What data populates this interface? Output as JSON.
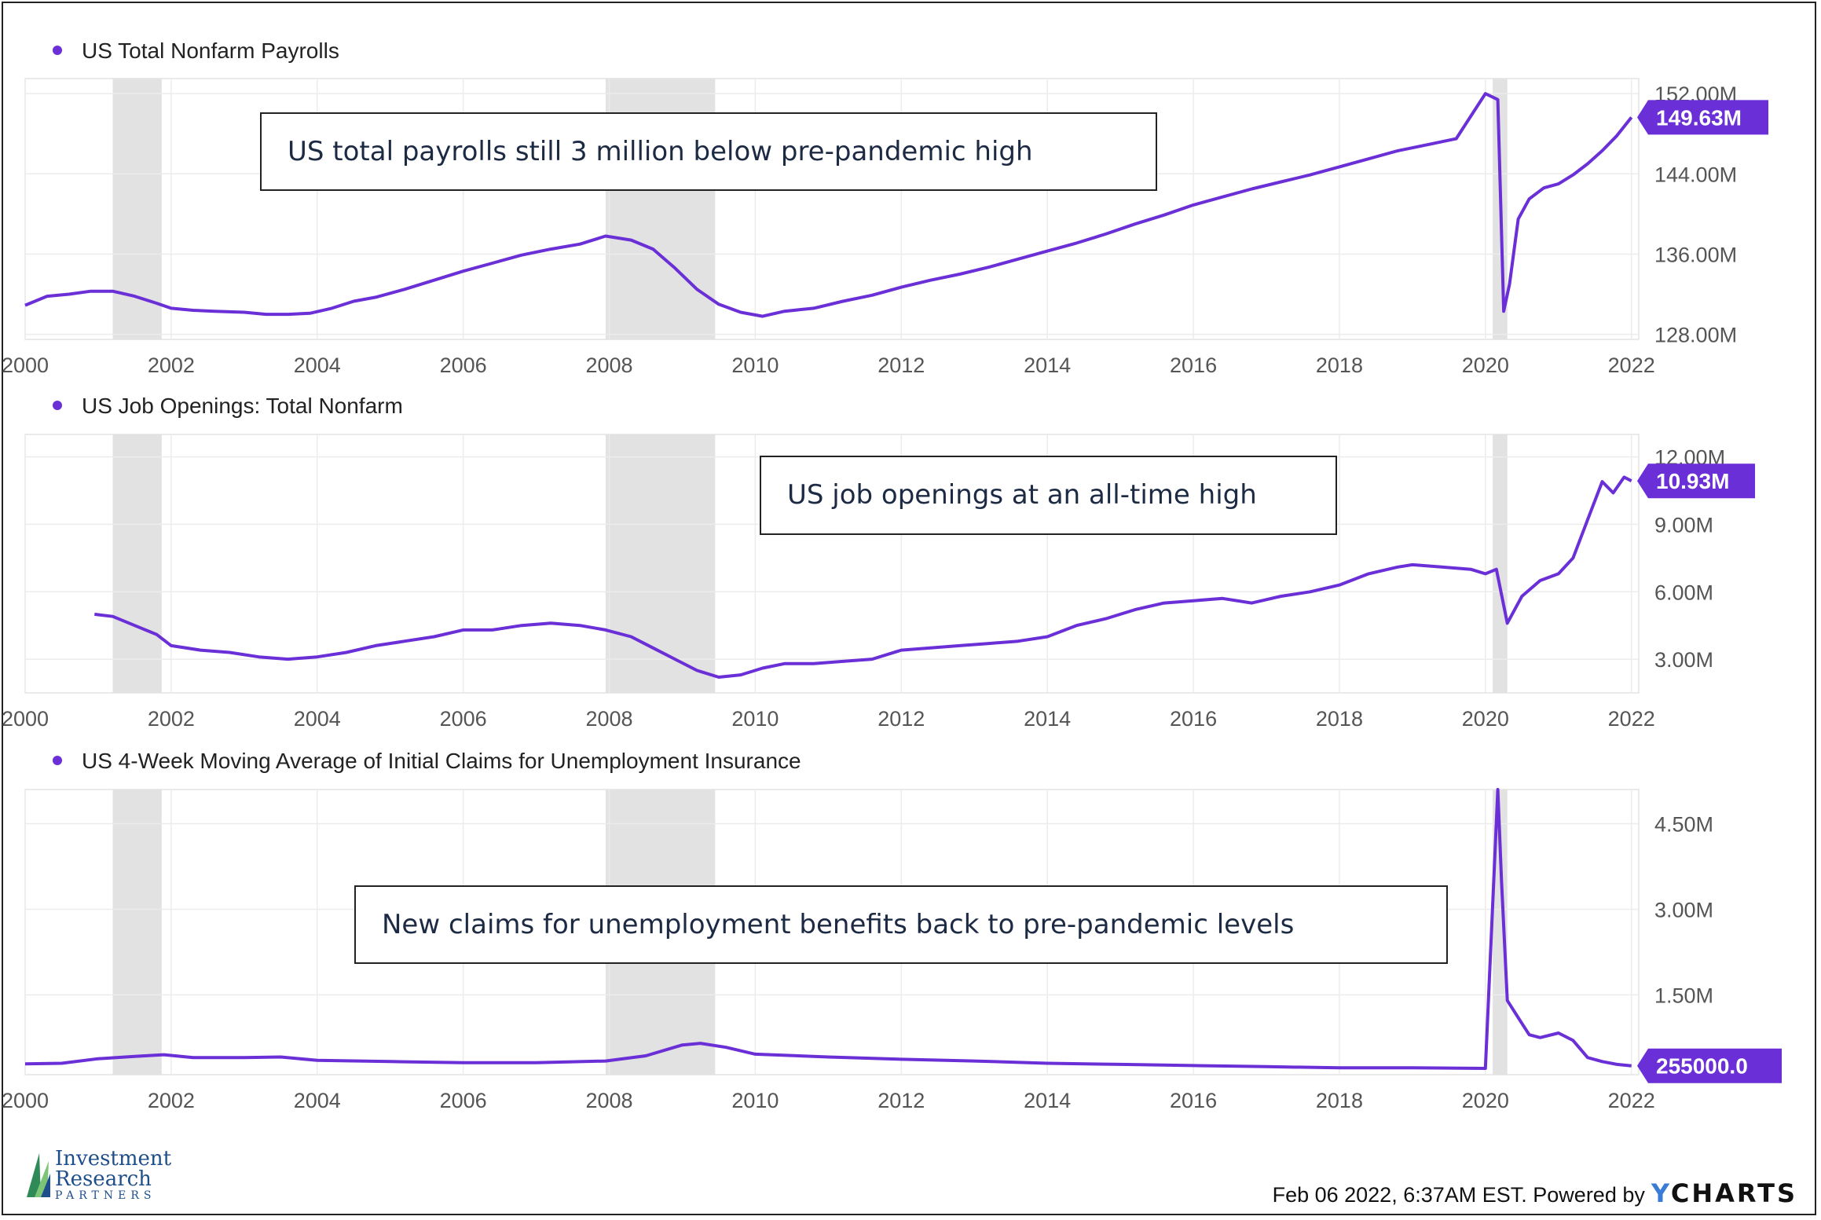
{
  "accent_color": "#6a2fd6",
  "recession_color": "#e2e2e2",
  "chart_data": [
    {
      "type": "line",
      "legend": "US Total Nonfarm Payrolls",
      "annotation": "US total payrolls still 3 million below pre-pandemic high",
      "last_value_label": "149.63M",
      "last_value": 149.63,
      "ylim": [
        127.5,
        153.5
      ],
      "yticks": [
        128,
        136,
        144,
        152
      ],
      "ytick_labels": [
        "128.00M",
        "136.00M",
        "144.00M",
        "152.00M"
      ],
      "xlim": [
        2000.0,
        2022.1
      ],
      "xticks": [
        2000,
        2002,
        2004,
        2006,
        2008,
        2010,
        2012,
        2014,
        2016,
        2018,
        2020,
        2022
      ],
      "xtick_labels": [
        "2000",
        "2002",
        "2004",
        "2006",
        "2008",
        "2010",
        "2012",
        "2014",
        "2016",
        "2018",
        "2020",
        "2022"
      ],
      "recessions": [
        [
          2001.2,
          2001.87
        ],
        [
          2007.95,
          2009.45
        ],
        [
          2020.1,
          2020.3
        ]
      ],
      "series": [
        {
          "x": [
            2000.0,
            2000.3,
            2000.6,
            2000.9,
            2001.2,
            2001.5,
            2001.8,
            2002.0,
            2002.3,
            2002.6,
            2003.0,
            2003.3,
            2003.6,
            2003.9,
            2004.2,
            2004.5,
            2004.8,
            2005.2,
            2005.6,
            2006.0,
            2006.4,
            2006.8,
            2007.2,
            2007.6,
            2007.95,
            2008.3,
            2008.6,
            2008.9,
            2009.2,
            2009.5,
            2009.8,
            2010.1,
            2010.4,
            2010.8,
            2011.2,
            2011.6,
            2012.0,
            2012.4,
            2012.8,
            2013.2,
            2013.6,
            2014.0,
            2014.4,
            2014.8,
            2015.2,
            2015.6,
            2016.0,
            2016.4,
            2016.8,
            2017.2,
            2017.6,
            2018.0,
            2018.4,
            2018.8,
            2019.2,
            2019.6,
            2020.0,
            2020.17,
            2020.25,
            2020.33,
            2020.45,
            2020.6,
            2020.8,
            2021.0,
            2021.2,
            2021.4,
            2021.6,
            2021.8,
            2022.0
          ],
          "y": [
            130.9,
            131.8,
            132.0,
            132.3,
            132.3,
            131.8,
            131.1,
            130.6,
            130.4,
            130.3,
            130.2,
            130.0,
            130.0,
            130.1,
            130.6,
            131.3,
            131.7,
            132.5,
            133.4,
            134.3,
            135.1,
            135.9,
            136.5,
            137.0,
            137.8,
            137.4,
            136.5,
            134.6,
            132.5,
            131.0,
            130.2,
            129.8,
            130.3,
            130.6,
            131.3,
            131.9,
            132.7,
            133.4,
            134.0,
            134.7,
            135.5,
            136.3,
            137.1,
            138.0,
            139.0,
            139.9,
            140.9,
            141.7,
            142.5,
            143.2,
            143.9,
            144.7,
            145.5,
            146.3,
            146.9,
            147.5,
            152.0,
            151.4,
            130.3,
            133.0,
            139.5,
            141.5,
            142.6,
            143.0,
            143.9,
            145.0,
            146.3,
            147.8,
            149.63
          ]
        }
      ]
    },
    {
      "type": "line",
      "legend": "US Job Openings: Total Nonfarm",
      "annotation": "US job openings at an all-time high",
      "last_value_label": "10.93M",
      "last_value": 10.93,
      "ylim": [
        1.5,
        13.0
      ],
      "yticks": [
        3,
        6,
        9,
        12
      ],
      "ytick_labels": [
        "3.00M",
        "6.00M",
        "9.00M",
        "12.00M"
      ],
      "xlim": [
        2000.0,
        2022.1
      ],
      "xticks": [
        2000,
        2002,
        2004,
        2006,
        2008,
        2010,
        2012,
        2014,
        2016,
        2018,
        2020,
        2022
      ],
      "xtick_labels": [
        "2000",
        "2002",
        "2004",
        "2006",
        "2008",
        "2010",
        "2012",
        "2014",
        "2016",
        "2018",
        "2020",
        "2022"
      ],
      "recessions": [
        [
          2001.2,
          2001.87
        ],
        [
          2007.95,
          2009.45
        ],
        [
          2020.1,
          2020.3
        ]
      ],
      "series": [
        {
          "x": [
            2000.95,
            2001.2,
            2001.5,
            2001.8,
            2002.0,
            2002.4,
            2002.8,
            2003.2,
            2003.6,
            2004.0,
            2004.4,
            2004.8,
            2005.2,
            2005.6,
            2006.0,
            2006.4,
            2006.8,
            2007.2,
            2007.6,
            2007.95,
            2008.3,
            2008.6,
            2008.9,
            2009.2,
            2009.5,
            2009.8,
            2010.1,
            2010.4,
            2010.8,
            2011.2,
            2011.6,
            2012.0,
            2012.4,
            2012.8,
            2013.2,
            2013.6,
            2014.0,
            2014.4,
            2014.8,
            2015.2,
            2015.6,
            2016.0,
            2016.4,
            2016.8,
            2017.2,
            2017.6,
            2018.0,
            2018.4,
            2018.8,
            2019.0,
            2019.4,
            2019.8,
            2020.0,
            2020.15,
            2020.3,
            2020.5,
            2020.75,
            2021.0,
            2021.2,
            2021.4,
            2021.6,
            2021.75,
            2021.9,
            2022.0
          ],
          "y": [
            5.0,
            4.9,
            4.5,
            4.1,
            3.6,
            3.4,
            3.3,
            3.1,
            3.0,
            3.1,
            3.3,
            3.6,
            3.8,
            4.0,
            4.3,
            4.3,
            4.5,
            4.6,
            4.5,
            4.3,
            4.0,
            3.5,
            3.0,
            2.5,
            2.2,
            2.3,
            2.6,
            2.8,
            2.8,
            2.9,
            3.0,
            3.4,
            3.5,
            3.6,
            3.7,
            3.8,
            4.0,
            4.5,
            4.8,
            5.2,
            5.5,
            5.6,
            5.7,
            5.5,
            5.8,
            6.0,
            6.3,
            6.8,
            7.1,
            7.2,
            7.1,
            7.0,
            6.8,
            7.0,
            4.6,
            5.8,
            6.5,
            6.8,
            7.5,
            9.2,
            10.9,
            10.4,
            11.1,
            10.93
          ]
        }
      ]
    },
    {
      "type": "line",
      "legend": "US 4-Week Moving Average of Initial Claims for Unemployment Insurance",
      "annotation": "New claims for unemployment benefits back to pre-pandemic levels",
      "last_value_label": "255000.0",
      "last_value": 0.255,
      "ylim": [
        0.1,
        5.1
      ],
      "yticks": [
        1.5,
        3.0,
        4.5
      ],
      "ytick_labels": [
        "1.50M",
        "3.00M",
        "4.50M"
      ],
      "xlim": [
        2000.0,
        2022.1
      ],
      "xticks": [
        2000,
        2002,
        2004,
        2006,
        2008,
        2010,
        2012,
        2014,
        2016,
        2018,
        2020,
        2022
      ],
      "xtick_labels": [
        "2000",
        "2002",
        "2004",
        "2006",
        "2008",
        "2010",
        "2012",
        "2014",
        "2016",
        "2018",
        "2020",
        "2022"
      ],
      "recessions": [
        [
          2001.2,
          2001.87
        ],
        [
          2007.95,
          2009.45
        ],
        [
          2020.1,
          2020.3
        ]
      ],
      "series": [
        {
          "x": [
            2000.0,
            2000.5,
            2001.0,
            2001.5,
            2001.9,
            2002.3,
            2003.0,
            2003.5,
            2004.0,
            2005.0,
            2006.0,
            2007.0,
            2007.95,
            2008.5,
            2009.0,
            2009.25,
            2009.6,
            2010.0,
            2011.0,
            2012.0,
            2013.0,
            2014.0,
            2015.0,
            2016.0,
            2017.0,
            2018.0,
            2019.0,
            2020.0,
            2020.17,
            2020.22,
            2020.3,
            2020.45,
            2020.6,
            2020.75,
            2021.0,
            2021.2,
            2021.4,
            2021.6,
            2021.8,
            2022.0
          ],
          "y": [
            0.29,
            0.3,
            0.38,
            0.42,
            0.45,
            0.4,
            0.4,
            0.41,
            0.35,
            0.33,
            0.31,
            0.31,
            0.34,
            0.43,
            0.62,
            0.65,
            0.58,
            0.46,
            0.41,
            0.37,
            0.34,
            0.3,
            0.28,
            0.26,
            0.24,
            0.22,
            0.22,
            0.21,
            5.1,
            3.5,
            1.4,
            1.1,
            0.8,
            0.75,
            0.83,
            0.7,
            0.4,
            0.33,
            0.28,
            0.255
          ]
        }
      ]
    }
  ],
  "footer": {
    "logo_line1": "Investment",
    "logo_line2": "Research",
    "logo_line3": "PARTNERS",
    "timestamp": "Feb 06 2022, 6:37AM EST. Powered by",
    "brand_y": "Y",
    "brand_rest": "CHARTS"
  }
}
